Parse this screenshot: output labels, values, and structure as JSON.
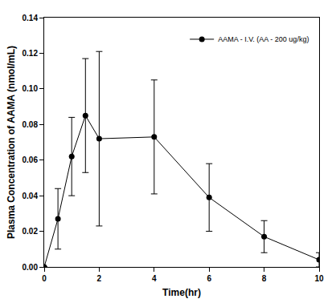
{
  "chart_data": {
    "type": "line",
    "x_label": "Time(hr)",
    "y_label": "Plasma Concentration of AAMA (nmol/mL)",
    "x": [
      0,
      0.5,
      1,
      1.5,
      2,
      4,
      6,
      8,
      10
    ],
    "series": [
      {
        "name": "AAMA - I.V. (AA - 200 ug/kg)",
        "color": "#000000",
        "marker": "circle",
        "line_style": "solid",
        "values": [
          0,
          0.027,
          0.062,
          0.085,
          0.072,
          0.073,
          0.039,
          0.017,
          0.004
        ],
        "error": [
          0,
          0.017,
          0.022,
          0.032,
          0.049,
          0.032,
          0.019,
          0.009,
          0.004
        ]
      }
    ],
    "xlim": [
      0,
      10
    ],
    "xticks": [
      0,
      2,
      4,
      6,
      8,
      10
    ],
    "ylim": [
      0,
      0.14
    ],
    "yticks": [
      {
        "value": 0,
        "label": "0.00"
      },
      {
        "value": 0.02,
        "label": "0.02"
      },
      {
        "value": 0.04,
        "label": "0.04"
      },
      {
        "value": 0.06,
        "label": "0.06"
      },
      {
        "value": 0.08,
        "label": "0.08"
      },
      {
        "value": 0.1,
        "label": "0.10"
      },
      {
        "value": 0.12,
        "label": "0.12"
      },
      {
        "value": 0.14,
        "label": "0.14"
      }
    ],
    "grid": false,
    "legend": "top right"
  }
}
